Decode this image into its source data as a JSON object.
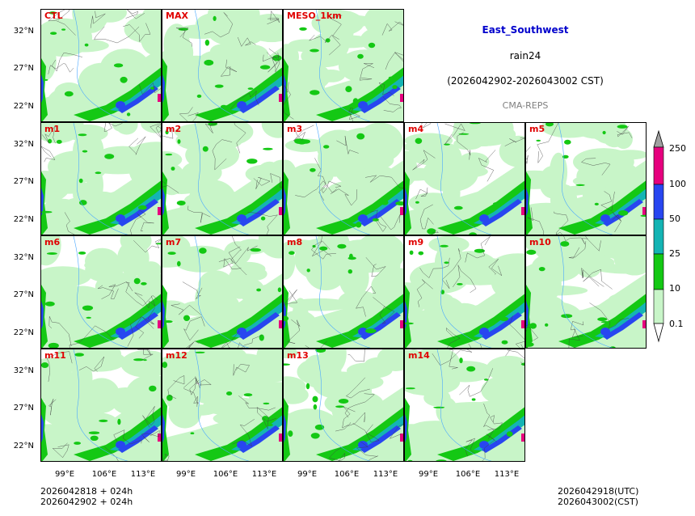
{
  "header": {
    "region": "East_Southwest",
    "variable": "rain24",
    "period": "(2026042902-2026043002 CST)",
    "source": "CMA-REPS",
    "region_color": "#0000cc",
    "source_color": "#808080"
  },
  "panels": [
    {
      "label": "CTL"
    },
    {
      "label": "MAX"
    },
    {
      "label": "MESO_1km"
    },
    {
      "label": "m1"
    },
    {
      "label": "m2"
    },
    {
      "label": "m3"
    },
    {
      "label": "m4"
    },
    {
      "label": "m5"
    },
    {
      "label": "m6"
    },
    {
      "label": "m7"
    },
    {
      "label": "m8"
    },
    {
      "label": "m9"
    },
    {
      "label": "m10"
    },
    {
      "label": "m11"
    },
    {
      "label": "m12"
    },
    {
      "label": "m13"
    },
    {
      "label": "m14"
    }
  ],
  "axes": {
    "y_ticks": [
      "32°N",
      "27°N",
      "22°N"
    ],
    "x_ticks": [
      "99°E",
      "106°E",
      "113°E"
    ]
  },
  "colorbar": {
    "labels": [
      "250",
      "100",
      "50",
      "25",
      "10",
      "0.1"
    ],
    "colors": [
      "#a0a0a0",
      "#e6007e",
      "#2846f0",
      "#14b4b4",
      "#14c814",
      "#c8f5c8",
      "#ffffff"
    ]
  },
  "footer": {
    "init_utc": "2026042818  +  024h",
    "init_cst": "2026042902  +  024h",
    "valid_utc": "2026042918(UTC)",
    "valid_cst": "2026043002(CST)"
  }
}
